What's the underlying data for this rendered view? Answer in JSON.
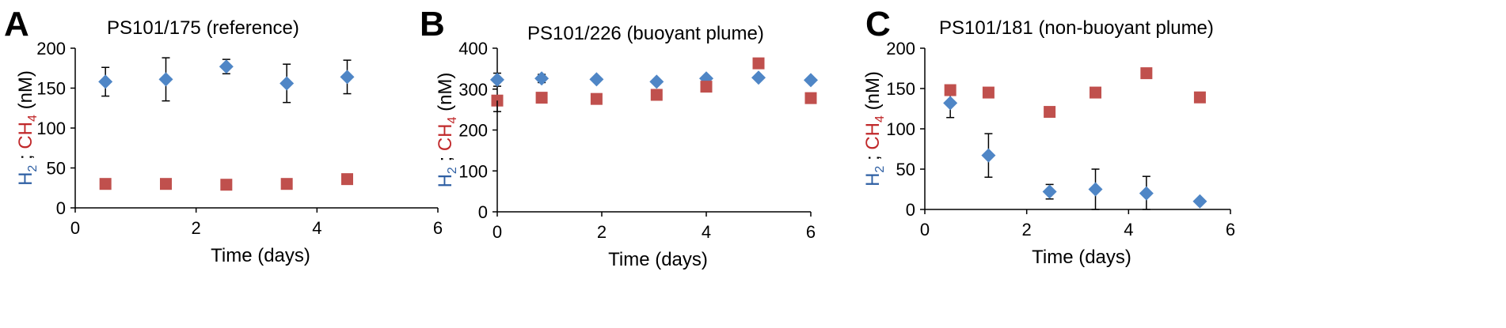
{
  "chart_data": [
    {
      "panel": "A",
      "type": "scatter",
      "title": "PS101/175  (reference)",
      "xlabel": "Time (days)",
      "ylabel": {
        "h2": "H",
        "h2_sub": "2",
        "sep": " ; ",
        "ch4": "CH",
        "ch4_sub": "4",
        "unit": "  (nM)"
      },
      "xlim": [
        0,
        6
      ],
      "xticks": [
        0,
        2,
        4,
        6
      ],
      "ylim": [
        0,
        200
      ],
      "yticks": [
        0,
        50,
        100,
        150,
        200
      ],
      "series": [
        {
          "name": "H2",
          "marker": "diamond",
          "color": "#4f86c6",
          "x": [
            0.5,
            1.5,
            2.5,
            3.5,
            4.5
          ],
          "y": [
            158,
            161,
            177,
            156,
            164
          ],
          "err": [
            18,
            27,
            9,
            24,
            21
          ]
        },
        {
          "name": "CH4",
          "marker": "square",
          "color": "#c0504d",
          "x": [
            0.5,
            1.5,
            2.5,
            3.5,
            4.5
          ],
          "y": [
            30,
            30,
            29,
            30,
            36
          ]
        }
      ]
    },
    {
      "panel": "B",
      "type": "scatter",
      "title": "PS101/226  (buoyant plume)",
      "xlabel": "Time (days)",
      "ylabel": {
        "h2": "H",
        "h2_sub": "2",
        "sep": " ; ",
        "ch4": "CH",
        "ch4_sub": "4",
        "unit": "  (nM)"
      },
      "xlim": [
        0,
        6
      ],
      "xticks": [
        0,
        2,
        4,
        6
      ],
      "ylim": [
        0,
        400
      ],
      "yticks": [
        0,
        100,
        200,
        300,
        400
      ],
      "series": [
        {
          "name": "H2",
          "marker": "diamond",
          "color": "#4f86c6",
          "x": [
            0,
            0.85,
            1.9,
            3.05,
            4.0,
            5.0,
            6.0
          ],
          "y": [
            323,
            326,
            324,
            318,
            326,
            328,
            322
          ],
          "err": [
            16,
            10,
            0,
            0,
            0,
            0,
            0
          ]
        },
        {
          "name": "CH4",
          "marker": "square",
          "color": "#c0504d",
          "x": [
            0,
            0.85,
            1.9,
            3.05,
            4.0,
            5.0,
            6.0
          ],
          "y": [
            272,
            279,
            276,
            286,
            306,
            363,
            278
          ],
          "err": [
            0,
            0,
            0,
            0,
            0,
            0,
            0
          ]
        }
      ],
      "error_bar_extra": {
        "x": 0,
        "low": 245
      }
    },
    {
      "panel": "C",
      "type": "scatter",
      "title": "PS101/181  (non-buoyant plume)",
      "xlabel": "Time (days)",
      "ylabel": {
        "h2": "H",
        "h2_sub": "2",
        "sep": " ; ",
        "ch4": "CH",
        "ch4_sub": "4",
        "unit": "  (nM)"
      },
      "xlim": [
        0,
        6
      ],
      "xticks": [
        0,
        2,
        4,
        6
      ],
      "ylim": [
        0,
        200
      ],
      "yticks": [
        0,
        50,
        100,
        150,
        200
      ],
      "series": [
        {
          "name": "H2",
          "marker": "diamond",
          "color": "#4f86c6",
          "x": [
            0.5,
            1.25,
            2.45,
            3.35,
            4.35,
            5.4
          ],
          "y": [
            132,
            67,
            22,
            25,
            20,
            10
          ],
          "err": [
            18,
            27,
            9,
            25,
            21,
            0
          ]
        },
        {
          "name": "CH4",
          "marker": "square",
          "color": "#c0504d",
          "x": [
            0.5,
            1.25,
            2.45,
            3.35,
            4.35,
            5.4
          ],
          "y": [
            148,
            145,
            121,
            145,
            169,
            139
          ]
        }
      ]
    }
  ]
}
